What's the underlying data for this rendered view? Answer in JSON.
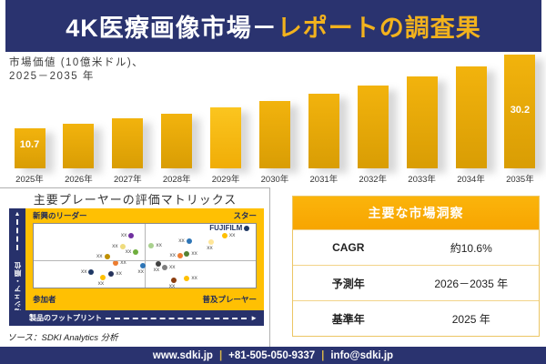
{
  "header": {
    "title_part1": "4K医療画像市場－",
    "title_part2": "レポートの調査果"
  },
  "chart_section": {
    "label_line1": "市場価値 (10億米ドル)、",
    "label_line2": "2025－2035 年"
  },
  "chart_data": [
    {
      "type": "bar",
      "title": "市場価値 (10億米ドル)、2025－2035年",
      "categories": [
        "2025年",
        "2026年",
        "2027年",
        "2028年",
        "2029年",
        "2030年",
        "2031年",
        "2032年",
        "2033年",
        "2034年",
        "2035年"
      ],
      "values": [
        10.7,
        11.9,
        13.2,
        14.6,
        16.2,
        17.9,
        19.9,
        22.0,
        24.4,
        27.0,
        30.2
      ],
      "value_labels": {
        "0": "10.7",
        "10": "30.2"
      },
      "ylim": [
        0,
        30.2
      ],
      "bar_color": "#E2A509",
      "highlight_index": 4,
      "legend": "none",
      "grid": "off"
    },
    {
      "type": "scatter",
      "title": "主要プレーヤーの評価マトリックス",
      "xlabel": "製品のフットプリント",
      "ylabel": "市場シェア・順位",
      "quadrants": {
        "top_left": "新興のリーダー",
        "top_right": "スター",
        "bottom_left": "参加者",
        "bottom_right": "普及プレーヤー"
      },
      "points": [
        {
          "x_pct": 44,
          "y_pct": 19,
          "color": "#7030A0",
          "label": "xx",
          "pos": "left"
        },
        {
          "x_pct": 40,
          "y_pct": 36,
          "color": "#EFDC7E",
          "label": "xx",
          "pos": "left"
        },
        {
          "x_pct": 33,
          "y_pct": 51,
          "color": "#BF9000",
          "label": "xx",
          "pos": "left"
        },
        {
          "x_pct": 46,
          "y_pct": 44,
          "color": "#6FAE3E",
          "label": "xx",
          "pos": "left"
        },
        {
          "x_pct": 26,
          "y_pct": 76,
          "color": "#1F3864",
          "label": "xx",
          "pos": "left"
        },
        {
          "x_pct": 37,
          "y_pct": 62,
          "color": "#ED7D31",
          "label": "xx",
          "pos": "right"
        },
        {
          "x_pct": 31,
          "y_pct": 84,
          "color": "#FFC000",
          "label": "xx",
          "pos": "bottom"
        },
        {
          "x_pct": 35,
          "y_pct": 79,
          "color": "#26335B",
          "label": "xx",
          "pos": "right"
        },
        {
          "x_pct": 49,
          "y_pct": 65,
          "color": "#2E75B6",
          "label": "xx",
          "pos": "bottom"
        },
        {
          "x_pct": 53,
          "y_pct": 34,
          "color": "#A9D18E",
          "label": "xx",
          "pos": "right"
        },
        {
          "x_pct": 70,
          "y_pct": 27,
          "color": "#2E75B6",
          "label": "xx",
          "pos": "left"
        },
        {
          "x_pct": 80,
          "y_pct": 28,
          "color": "#FFE699",
          "label": "xx",
          "pos": "bottom"
        },
        {
          "x_pct": 86,
          "y_pct": 19,
          "color": "#FFC000",
          "label": "xx",
          "pos": "right"
        },
        {
          "x_pct": 96,
          "y_pct": 7,
          "color": "#1F3864",
          "label": "FUJIFILM",
          "pos": "left",
          "bold": true
        },
        {
          "x_pct": 66,
          "y_pct": 50,
          "color": "#ED7D31",
          "label": "xx",
          "pos": "left"
        },
        {
          "x_pct": 69,
          "y_pct": 47,
          "color": "#548235",
          "label": "xx",
          "pos": "right"
        },
        {
          "x_pct": 56,
          "y_pct": 63,
          "color": "#404040",
          "label": "xx",
          "pos": "bottom"
        },
        {
          "x_pct": 59,
          "y_pct": 69,
          "color": "#7F7F7F",
          "label": "xx",
          "pos": "right"
        },
        {
          "x_pct": 63,
          "y_pct": 88,
          "color": "#8C3D0F",
          "label": "xx",
          "pos": "bottom"
        },
        {
          "x_pct": 69,
          "y_pct": 86,
          "color": "#FFC000",
          "label": "xx",
          "pos": "right"
        }
      ]
    }
  ],
  "matrix_section": {
    "title": "主要プレーヤーの評価マトリックス",
    "quadrant_top_left": "新興のリーダー",
    "quadrant_top_right": "スター",
    "quadrant_bottom_left": "参加者",
    "quadrant_bottom_right": "普及プレーヤー",
    "y_axis_label": "市場シェア・順位",
    "x_axis_label": "製品のフットプリント",
    "up_arrow": "▲",
    "right_arrow": "►"
  },
  "insights": {
    "title": "主要な市場洞察",
    "rows": [
      {
        "label": "CAGR",
        "value": "約10.6%"
      },
      {
        "label": "予測年",
        "value": "2026－2035 年"
      },
      {
        "label": "基準年",
        "value": "2025 年"
      }
    ]
  },
  "source_line": "ソース：SDKI Analytics 分析",
  "footer": {
    "website": "www.sdki.jp",
    "phone": "+81-505-050-9337",
    "email": "info@sdki.jp",
    "separator": "|"
  },
  "colors": {
    "navy": "#2A336F",
    "gold_accent": "#F2B21D",
    "bar_gold": "#E2A509",
    "matrix_yellow": "#FFC003",
    "table_header_amber": "#F9A902"
  }
}
